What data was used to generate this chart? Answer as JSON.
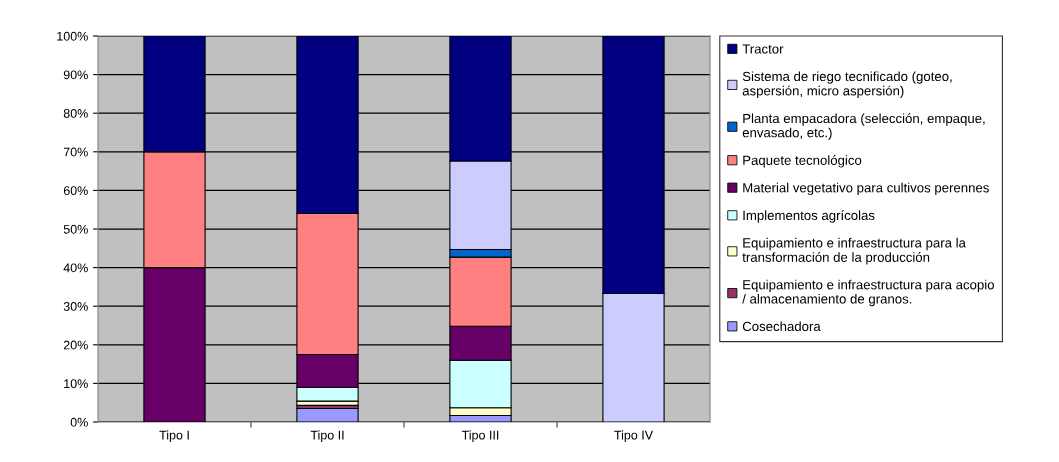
{
  "chart_data": {
    "type": "bar",
    "stacked": true,
    "categories": [
      "Tipo I",
      "Tipo II",
      "Tipo III",
      "Tipo IV"
    ],
    "series": [
      {
        "name": "Cosechadora",
        "color": "#9999ff",
        "values": [
          0,
          3.5,
          1.7,
          0
        ]
      },
      {
        "name": "Equipamiento e infraestructura para acopio\n/ almacenamiento de granos.",
        "color": "#993366",
        "values": [
          0,
          0.8,
          0,
          0
        ]
      },
      {
        "name": "Equipamiento e infraestructura para la\ntransformación de la producción",
        "color": "#ffffcc",
        "values": [
          0,
          1.1,
          2.0,
          0
        ]
      },
      {
        "name": "Implementos agrícolas",
        "color": "#ccffff",
        "values": [
          0,
          3.6,
          12.3,
          0
        ]
      },
      {
        "name": "Material vegetativo para cultivos perennes",
        "color": "#660066",
        "values": [
          40,
          8.5,
          8.8,
          0
        ]
      },
      {
        "name": "Paquete tecnológico",
        "color": "#ff8080",
        "values": [
          30,
          36.5,
          17.9,
          0
        ]
      },
      {
        "name": "Planta empacadora (selección, empaque,\nenvasado, etc.)",
        "color": "#0066cc",
        "values": [
          0,
          0,
          2.0,
          0
        ]
      },
      {
        "name": "Sistema de riego tecnificado (goteo,\naspersión, micro aspersión)",
        "color": "#ccccff",
        "values": [
          0,
          0,
          22.9,
          33.3
        ]
      },
      {
        "name": "Tractor",
        "color": "#000080",
        "values": [
          30,
          46,
          32.4,
          66.7
        ]
      }
    ],
    "ylim": [
      0,
      100
    ],
    "yticks": [
      {
        "value": 0,
        "label": "0%"
      },
      {
        "value": 10,
        "label": "10%"
      },
      {
        "value": 20,
        "label": "20%"
      },
      {
        "value": 30,
        "label": "30%"
      },
      {
        "value": 40,
        "label": "40%"
      },
      {
        "value": 50,
        "label": "50%"
      },
      {
        "value": 60,
        "label": "60%"
      },
      {
        "value": 70,
        "label": "70%"
      },
      {
        "value": 80,
        "label": "80%"
      },
      {
        "value": 90,
        "label": "90%"
      },
      {
        "value": 100,
        "label": "100%"
      }
    ],
    "grid": "y",
    "legend": "right"
  }
}
